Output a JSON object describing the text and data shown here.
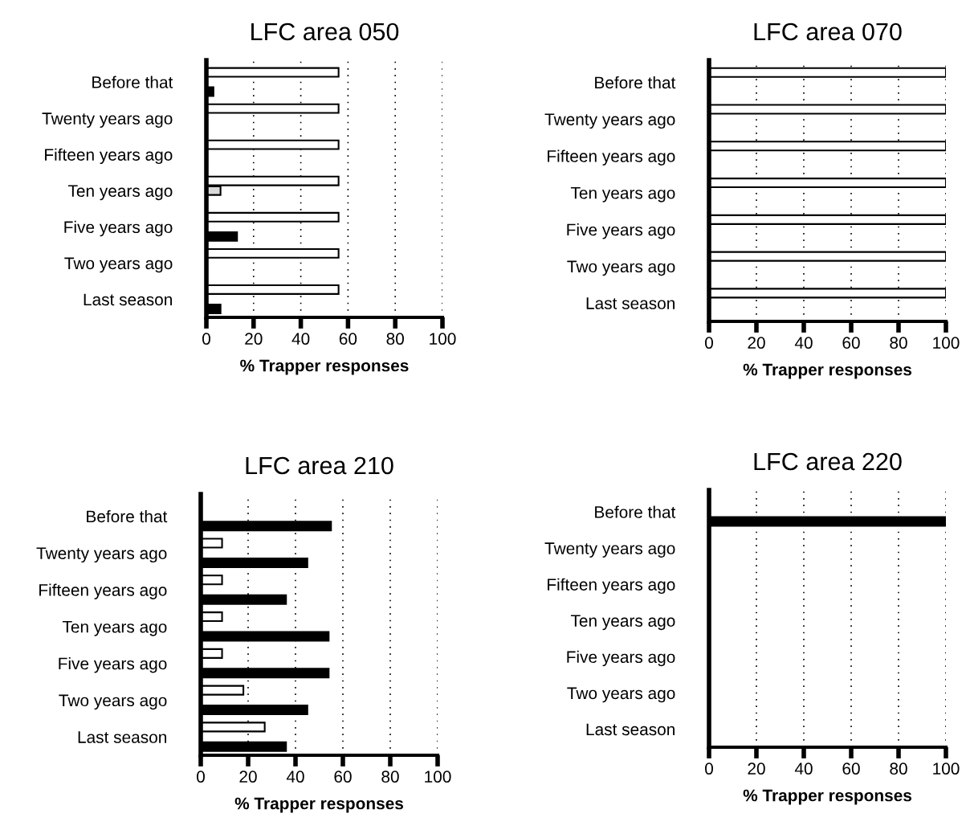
{
  "chart_data": [
    {
      "type": "bar",
      "orientation": "horizontal",
      "title": "LFC area 050",
      "xlabel": "% Trapper responses",
      "categories": [
        "Before that",
        "Twenty years ago",
        "Fifteen years ago",
        "Ten years ago",
        "Five years ago",
        "Two years ago",
        "Last season"
      ],
      "xlim": [
        0,
        100
      ],
      "xticks": [
        0,
        20,
        40,
        60,
        80,
        100
      ],
      "grid": "x",
      "series": [
        {
          "color": "#ffffff",
          "values": [
            56,
            56,
            56,
            56,
            56,
            56,
            56
          ]
        },
        {
          "color": "#d9d9d9",
          "values": [
            null,
            null,
            null,
            6,
            null,
            null,
            null
          ]
        },
        {
          "color": "#000000",
          "values": [
            3,
            null,
            null,
            null,
            13,
            null,
            6
          ]
        }
      ]
    },
    {
      "type": "bar",
      "orientation": "horizontal",
      "title": "LFC area 070",
      "xlabel": "% Trapper responses",
      "categories": [
        "Before that",
        "Twenty years ago",
        "Fifteen years ago",
        "Ten years ago",
        "Five years ago",
        "Two years ago",
        "Last season"
      ],
      "xlim": [
        0,
        100
      ],
      "xticks": [
        0,
        20,
        40,
        60,
        80,
        100
      ],
      "grid": "x",
      "series": [
        {
          "color": "#ffffff",
          "values": [
            100,
            100,
            100,
            100,
            100,
            100,
            100
          ]
        }
      ]
    },
    {
      "type": "bar",
      "orientation": "horizontal",
      "title": "LFC area 210",
      "xlabel": "% Trapper responses",
      "categories": [
        "Before that",
        "Twenty years ago",
        "Fifteen years ago",
        "Ten years ago",
        "Five years ago",
        "Two years ago",
        "Last season"
      ],
      "xlim": [
        0,
        100
      ],
      "xticks": [
        0,
        20,
        40,
        60,
        80,
        100
      ],
      "grid": "x",
      "series": [
        {
          "color": "#ffffff",
          "values": [
            null,
            9,
            9,
            9,
            9,
            18,
            27
          ]
        },
        {
          "color": "#000000",
          "values": [
            55,
            45,
            36,
            54,
            54,
            45,
            36
          ]
        }
      ]
    },
    {
      "type": "bar",
      "orientation": "horizontal",
      "title": "LFC area 220",
      "xlabel": "% Trapper responses",
      "categories": [
        "Before that",
        "Twenty years ago",
        "Fifteen years ago",
        "Ten years ago",
        "Five years ago",
        "Two years ago",
        "Last season"
      ],
      "xlim": [
        0,
        100
      ],
      "xticks": [
        0,
        20,
        40,
        60,
        80,
        100
      ],
      "grid": "x",
      "series": [
        {
          "color": "#000000",
          "values": [
            100,
            null,
            null,
            null,
            null,
            null,
            null
          ]
        }
      ]
    }
  ]
}
